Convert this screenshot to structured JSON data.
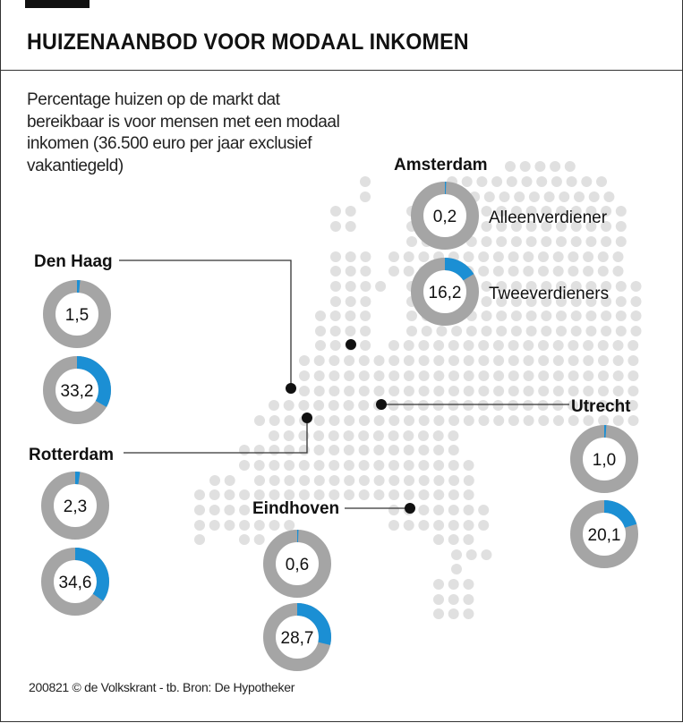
{
  "title": "HUIZENAANBOD VOOR MODAAL INKOMEN",
  "subtitle": "Percentage huizen op de markt dat bereikbaar is voor mensen met een modaal inkomen (36.500 euro per jaar exclusief vakantiegeld)",
  "footer": "200821 © de Volkskrant - tb. Bron: De Hypotheker",
  "colors": {
    "share": "#1b8fd4",
    "rest": "#a5a5a5",
    "map_dot": "#e0e0e0",
    "city_dot": "#111111"
  },
  "legend": {
    "single": "Alleenverdiener",
    "double": "Tweeverdieners"
  },
  "chart_data": {
    "type": "pie",
    "variant": "donut",
    "unit": "%",
    "series_labels": [
      "Alleenverdiener",
      "Tweeverdieners"
    ],
    "cities": [
      {
        "name": "Amsterdam",
        "values": [
          0.2,
          16.2
        ],
        "labels": [
          "0,2",
          "16,2"
        ]
      },
      {
        "name": "Den Haag",
        "values": [
          1.5,
          33.2
        ],
        "labels": [
          "1,5",
          "33,2"
        ]
      },
      {
        "name": "Rotterdam",
        "values": [
          2.3,
          34.6
        ],
        "labels": [
          "2,3",
          "34,6"
        ]
      },
      {
        "name": "Utrecht",
        "values": [
          1.0,
          20.1
        ],
        "labels": [
          "1,0",
          "20,1"
        ]
      },
      {
        "name": "Eindhoven",
        "values": [
          0.6,
          28.7
        ],
        "labels": [
          "0,6",
          "28,7"
        ]
      }
    ]
  }
}
